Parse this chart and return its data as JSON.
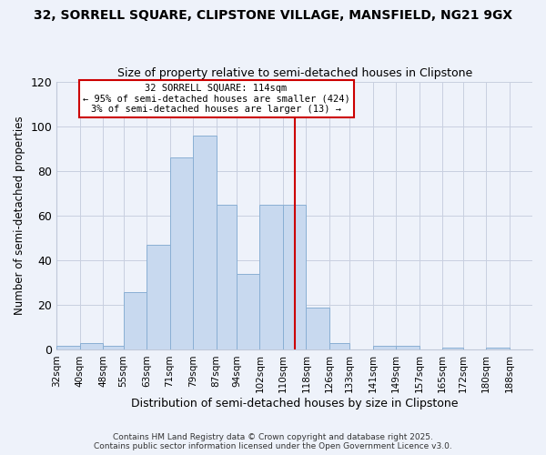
{
  "title1": "32, SORRELL SQUARE, CLIPSTONE VILLAGE, MANSFIELD, NG21 9GX",
  "title2": "Size of property relative to semi-detached houses in Clipstone",
  "xlabel": "Distribution of semi-detached houses by size in Clipstone",
  "ylabel": "Number of semi-detached properties",
  "bin_labels": [
    "32sqm",
    "40sqm",
    "48sqm",
    "55sqm",
    "63sqm",
    "71sqm",
    "79sqm",
    "87sqm",
    "94sqm",
    "102sqm",
    "110sqm",
    "118sqm",
    "126sqm",
    "133sqm",
    "141sqm",
    "149sqm",
    "157sqm",
    "165sqm",
    "172sqm",
    "180sqm",
    "188sqm"
  ],
  "bin_edges": [
    32,
    40,
    48,
    55,
    63,
    71,
    79,
    87,
    94,
    102,
    110,
    118,
    126,
    133,
    141,
    149,
    157,
    165,
    172,
    180,
    188
  ],
  "bar_heights": [
    2,
    3,
    2,
    26,
    47,
    86,
    96,
    65,
    34,
    65,
    65,
    19,
    3,
    0,
    2,
    2,
    0,
    1,
    0,
    1,
    0
  ],
  "bar_color": "#c8d9ef",
  "bar_edgecolor": "#8aafd4",
  "vline_x": 114,
  "vline_color": "#cc0000",
  "annotation_title": "32 SORRELL SQUARE: 114sqm",
  "annotation_line1": "← 95% of semi-detached houses are smaller (424)",
  "annotation_line2": "3% of semi-detached houses are larger (13) →",
  "ylim": [
    0,
    120
  ],
  "yticks": [
    0,
    20,
    40,
    60,
    80,
    100,
    120
  ],
  "footer1": "Contains HM Land Registry data © Crown copyright and database right 2025.",
  "footer2": "Contains public sector information licensed under the Open Government Licence v3.0.",
  "bg_color": "#eef2fa"
}
